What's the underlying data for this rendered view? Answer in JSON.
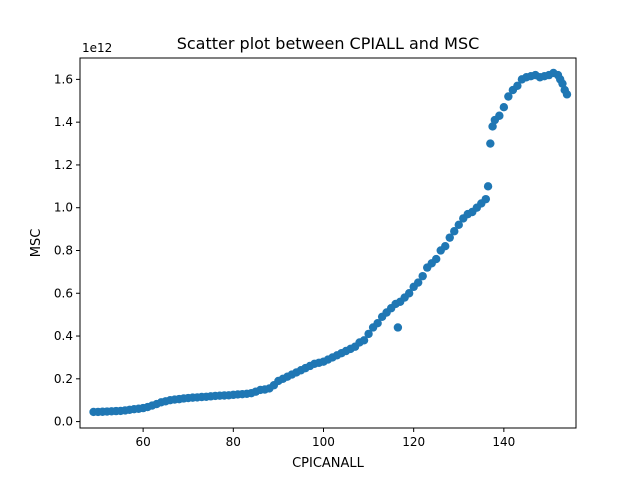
{
  "chart_data": {
    "type": "scatter",
    "title": "Scatter plot between CPIALL and MSC",
    "xlabel": "CPICANALL",
    "ylabel": "MSC",
    "y_offset_text": "1e12",
    "xlim": [
      46,
      156
    ],
    "ylim": [
      -0.03,
      1.7
    ],
    "xticks": [
      60,
      80,
      100,
      120,
      140
    ],
    "xtick_labels": [
      "60",
      "80",
      "100",
      "120",
      "140"
    ],
    "yticks": [
      0.0,
      0.2,
      0.4,
      0.6,
      0.8,
      1.0,
      1.2,
      1.4,
      1.6
    ],
    "ytick_labels": [
      "0.0",
      "0.2",
      "0.4",
      "0.6",
      "0.8",
      "1.0",
      "1.2",
      "1.4",
      "1.6"
    ],
    "grid": false,
    "legend": "none",
    "marker_color": "#1f77b4",
    "series": [
      {
        "x": [
          49,
          50,
          51,
          52,
          53,
          54,
          55,
          56,
          57,
          58,
          59,
          60,
          61,
          62,
          63,
          64,
          65,
          66,
          67,
          68,
          69,
          70,
          71,
          72,
          73,
          74,
          75,
          76,
          77,
          78,
          79,
          80,
          81,
          82,
          83,
          84,
          85,
          86,
          87,
          88,
          89,
          90,
          91,
          92,
          93,
          94,
          95,
          96,
          97,
          98,
          99,
          100,
          101,
          102,
          103,
          104,
          105,
          106,
          107,
          108,
          109,
          110,
          111,
          112,
          113,
          114,
          115,
          116,
          116.5,
          117,
          118,
          119,
          120,
          121,
          122,
          123,
          124,
          125,
          126,
          127,
          128,
          129,
          130,
          131,
          132,
          133,
          134,
          135,
          136,
          136.5,
          137,
          137.5,
          138,
          139,
          140,
          141,
          142,
          143,
          144,
          145,
          146,
          147,
          148,
          149,
          150,
          151,
          152,
          152.5,
          153,
          153.5,
          154
        ],
        "y": [
          0.045,
          0.045,
          0.046,
          0.047,
          0.048,
          0.049,
          0.05,
          0.052,
          0.055,
          0.058,
          0.06,
          0.063,
          0.068,
          0.075,
          0.082,
          0.09,
          0.095,
          0.1,
          0.103,
          0.105,
          0.108,
          0.11,
          0.112,
          0.113,
          0.115,
          0.116,
          0.118,
          0.12,
          0.121,
          0.122,
          0.123,
          0.125,
          0.127,
          0.128,
          0.13,
          0.133,
          0.14,
          0.148,
          0.15,
          0.155,
          0.17,
          0.19,
          0.2,
          0.21,
          0.22,
          0.23,
          0.24,
          0.25,
          0.26,
          0.27,
          0.275,
          0.28,
          0.29,
          0.3,
          0.31,
          0.32,
          0.33,
          0.34,
          0.35,
          0.37,
          0.38,
          0.41,
          0.44,
          0.46,
          0.49,
          0.51,
          0.53,
          0.55,
          0.44,
          0.56,
          0.58,
          0.6,
          0.63,
          0.65,
          0.68,
          0.72,
          0.74,
          0.76,
          0.8,
          0.82,
          0.86,
          0.89,
          0.92,
          0.95,
          0.97,
          0.98,
          1.0,
          1.02,
          1.04,
          1.1,
          1.3,
          1.38,
          1.41,
          1.43,
          1.47,
          1.52,
          1.55,
          1.57,
          1.6,
          1.61,
          1.615,
          1.62,
          1.61,
          1.615,
          1.62,
          1.63,
          1.62,
          1.6,
          1.58,
          1.55,
          1.53
        ]
      }
    ]
  }
}
